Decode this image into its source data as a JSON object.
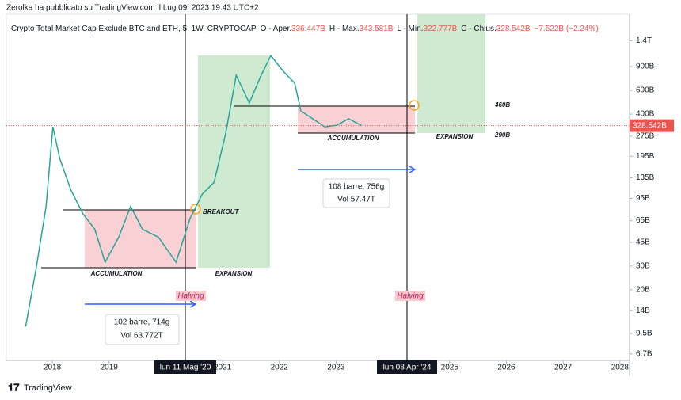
{
  "header": {
    "publisher": "Zerolka ha pubblicato su TradingView.com il Lug 09, 2023 19:43 UTC+2"
  },
  "legend": {
    "symbol": "Crypto Total Market Cap Exclude BTC and ETH, 5, 1W, CRYPTOCAP",
    "open_label": "O - Aper.",
    "open": "336.447B",
    "high_label": "H - Max.",
    "high": "343.581B",
    "low_label": "L - Min.",
    "low": "322.777B",
    "close_label": "C - Chius.",
    "close": "328.542B",
    "change": "−7.522B (−2.24%)"
  },
  "chart_data": {
    "type": "line",
    "color": "#26a69a",
    "log_scale": true,
    "x": [
      2017.53,
      2017.71,
      2017.89,
      2018.01,
      2018.13,
      2018.33,
      2018.54,
      2018.75,
      2018.93,
      2019.17,
      2019.38,
      2019.59,
      2019.87,
      2020.18,
      2020.43,
      2020.64,
      2020.85,
      2021.05,
      2021.24,
      2021.47,
      2021.68,
      2021.85,
      2022.07,
      2022.27,
      2022.38,
      2022.59,
      2022.8,
      2023.01,
      2023.22,
      2023.45
    ],
    "values": [
      10.7,
      28,
      83,
      322,
      188,
      109,
      73,
      56,
      32,
      49,
      83,
      56,
      49,
      32,
      68,
      102,
      125,
      282,
      776,
      484,
      776,
      1087,
      830,
      678,
      422,
      369,
      322,
      331,
      369,
      328.542
    ],
    "xlim": [
      2017.19,
      2028.17
    ],
    "ylim": [
      6,
      2800
    ],
    "xticks": [
      2018,
      2019,
      2021,
      2022,
      2023,
      2025,
      2026,
      2027,
      2028
    ],
    "yticks": [
      {
        "value": 1400,
        "label": "1.4T"
      },
      {
        "value": 900,
        "label": "900B"
      },
      {
        "value": 600,
        "label": "600B"
      },
      {
        "value": 400,
        "label": "400B"
      },
      {
        "value": 275,
        "label": "275B"
      },
      {
        "value": 195,
        "label": "195B"
      },
      {
        "value": 135,
        "label": "135B"
      },
      {
        "value": 95,
        "label": "95B"
      },
      {
        "value": 65,
        "label": "65B"
      },
      {
        "value": 45,
        "label": "45B"
      },
      {
        "value": 30,
        "label": "30B"
      },
      {
        "value": 20,
        "label": "20B"
      },
      {
        "value": 14,
        "label": "14B"
      },
      {
        "value": 9.5,
        "label": "9.5B"
      },
      {
        "value": 6.7,
        "label": "6.7B"
      }
    ],
    "last_value": {
      "value": 328.542,
      "label": "328.542B"
    }
  },
  "annotations": {
    "accumulation_1": "ACCUMULATION",
    "expansion_1": "EXPANSION",
    "breakout": "BREAKOUT",
    "halving_1": "Halving",
    "info_1_bars": "102 barre, 714g",
    "info_1_vol": "Vol 63.772T",
    "accumulation_2": "ACCUMULATION",
    "expansion_2": "EXPANSION",
    "level_high": "460B",
    "level_low": "290B",
    "halving_2": "Halving",
    "info_2_bars": "108 barre, 756g",
    "info_2_vol": "Vol 57.47T"
  },
  "crosshairs": [
    "lun 11 Mag '20",
    "lun 08 Apr '24"
  ],
  "footer": {
    "brand": "TradingView"
  }
}
